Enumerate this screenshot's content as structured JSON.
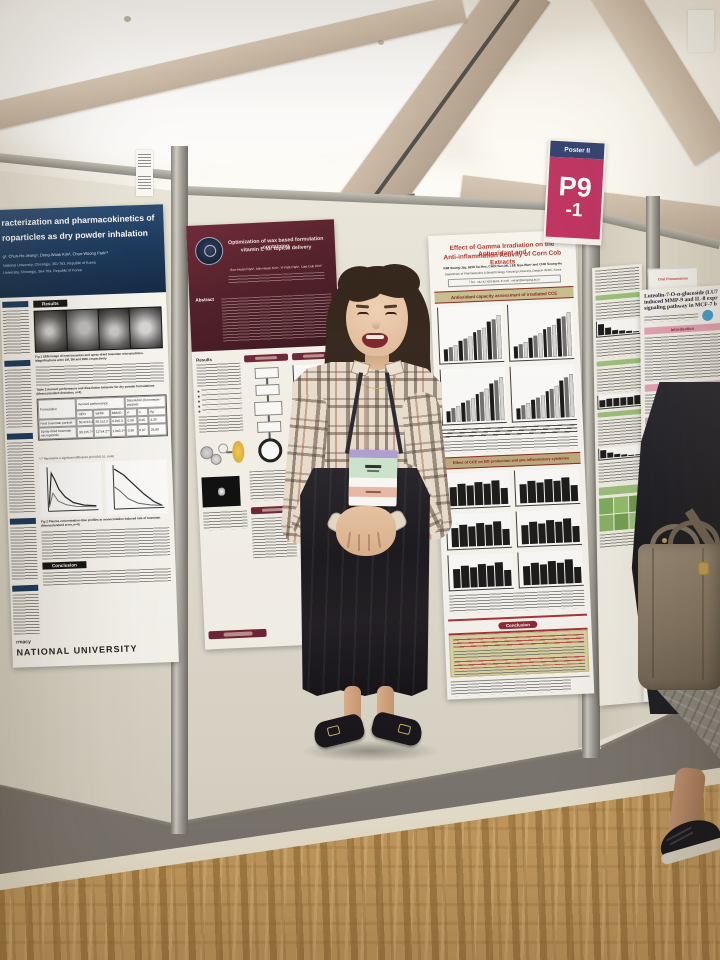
{
  "sign": {
    "header": "Poster II",
    "code": "P9",
    "suffix": "-1"
  },
  "palette": {
    "sign_navy": "#2e3e6d",
    "sign_magenta": "#bf2f5f",
    "poster_maroon": "#5a1e2b",
    "poster_red_title": "#b03228",
    "khaki_box": "#dcd5a6",
    "pink_bar": "#eaa6ba",
    "green_bar": "#9cc27c",
    "badge_lavender": "#b3a0d6",
    "badge_mint": "#cde9cf",
    "badge_salmon": "#eebcaa",
    "bag_taupe": "#8b7d6b"
  },
  "posters": {
    "left": {
      "title_line1": "racterization and pharmacokinetics of",
      "title_line2": "roparticles as dry powder inhalation",
      "authors": "g¹, Chun-Ho Jeong¹, Dong-Wook Kim², Chun-Woong Park¹*",
      "affil1": "National University, Cheongju, 361-763, Republic of Korea",
      "affil2": "University, Cheongju, 364-764, Republic of Korea",
      "results_label": "Results",
      "fig1_caption": "Fig 1 SEM image of neat bosentan and spray-dried bosentan microparticles. Magnifications were 1M, 3M and 35M, respectively",
      "table_caption": "Table 2 Aerosol performance and dissolution behavior for dry powder formulations (Mean±standard deviation, n=4)",
      "table": {
        "group_aerosol": "Aerosol performance",
        "group_dissolution": "Dissolution (Korsmeyer-peppas)",
        "col_formulation": "Formulation",
        "cols": [
          "%ED",
          "%FPF",
          "MMAD",
          "r²",
          "n",
          "Kp"
        ],
        "rows": [
          {
            "label": "Neat bosentan particle",
            "values": [
              "50.9±19.4",
              "28.2±2.9",
              "3.9±0.3",
              "0.98",
              "0.95",
              "4.39"
            ]
          },
          {
            "label": "Spray-dried bosentan microparticle",
            "values": [
              "90.2±5.7*",
              "117±4.2**",
              "1.9±0.1**",
              "0.96",
              "0.97",
              "25.89"
            ]
          }
        ],
        "footnote": "*,** Represents a significant difference (p<0.05/0.01, t-test)"
      },
      "fig2_caption": "Fig 2 Plasma concentration-time profiles in monocrotaline-induced rats of bosentan (Mean±standard error, n=4)",
      "conclusion_label": "Conclusion",
      "footer_line1": "rmacy",
      "footer_line2": "NATIONAL UNIVERSITY"
    },
    "middle": {
      "title_line1": "Optimization of wax based formulation containing",
      "title_line2": "vitamin E for topical delivery",
      "authors": "Sun-Hwan Park¹, Min-Hwan Kim¹, Yi-Falk Park¹, Dae-Duk Kim²",
      "abstract_label": "Abstract",
      "results_label": "Results"
    },
    "right": {
      "title_line1": "Effect of Gamma Irradiation on the Antioxidant and",
      "title_line2": "Anti-inflammation Activity of Corn Cob Extracts",
      "authors": "KIM Seung-Jay, GDN Su-Hee, CHOI Sun-Mi, LEE Gyo-Wan¹ and CHO Seung-Ho",
      "affil": "Department of Pharmaceutics & Biotechnology, Konyang University, Daejeon 35365, Korea",
      "contact": "* Tel : +82-42-600-8503, E-mail : mlcarl@konyang.ac.kr",
      "section1": "Antioxidant capacity assessment of irradiated CCE",
      "section2": "Effect of CCE on NO production and pro-inflammatory cytokines",
      "conclusion_label": "Conclusion"
    },
    "far_right": {
      "title_line1": "Luteolin-7-O-α-glucoside (LU7",
      "title_line2": "induced MMP-9 and IL-8 expr",
      "title_line3": "signaling pathway in MCF-7 b",
      "intro_label": "Introduction",
      "results_label": "Results"
    },
    "side_tag": "Oral Presentation"
  },
  "decor": {
    "asc12": [
      0.22,
      0.27,
      0.31,
      0.38,
      0.42,
      0.46,
      0.54,
      0.58,
      0.63,
      0.74,
      0.79,
      0.86
    ],
    "asc4": [
      0.35,
      0.52,
      0.7,
      0.88
    ],
    "flat7": [
      0.62,
      0.74,
      0.67,
      0.77,
      0.69,
      0.8,
      0.52
    ],
    "flat6": [
      0.68,
      0.75,
      0.7,
      0.77,
      0.72,
      0.8
    ],
    "desc6": [
      0.86,
      0.52,
      0.32,
      0.22,
      0.15,
      0.1
    ]
  }
}
